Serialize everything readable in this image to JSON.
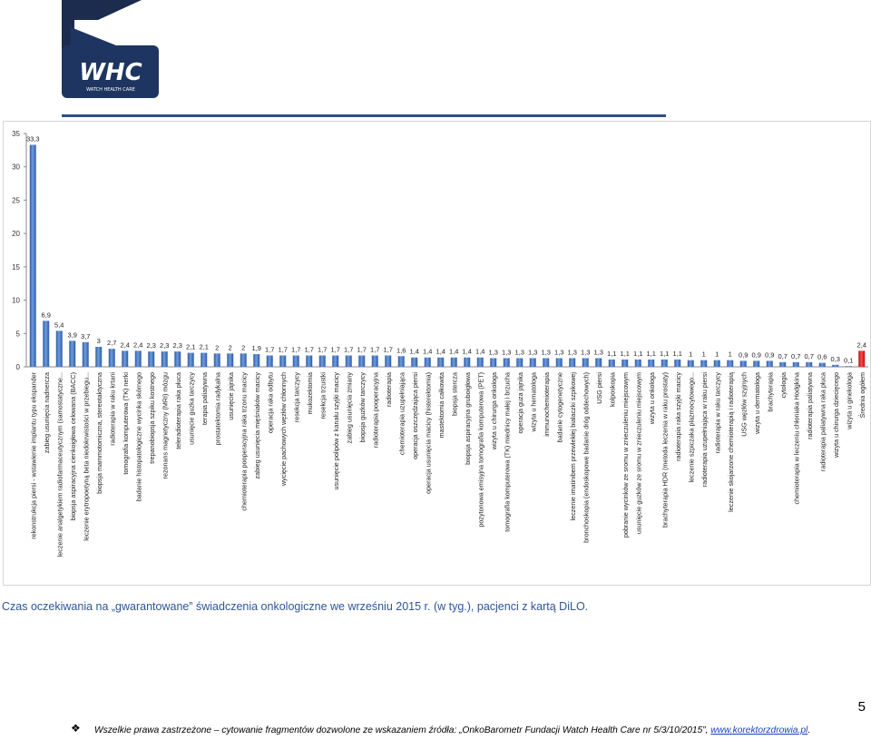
{
  "logo": {
    "brand_text": "WHC",
    "sub_text": "WATCH HEALTH CARE"
  },
  "caption": "Czas oczekiwania na „gwarantowane” świadczenia onkologiczne we wrześniu 2015 r. (w tyg.), pacjenci z kartą DiLO.",
  "page_number": "5",
  "footer": {
    "bullet": "❖",
    "text": "Wszelkie prawa zastrzeżone – cytowanie fragmentów dozwolone ze wskazaniem źródła: „OnkoBarometr Fundacji Watch Health Care nr 5/3/10/2015”, ",
    "link": "www.korektorzdrowia.pl",
    "end": "."
  },
  "colors": {
    "bar": "#3f74c0",
    "highlight": "#e02020",
    "header_rule": "#2e4f86",
    "caption": "#2e5597"
  },
  "chart_data": {
    "type": "bar",
    "ylim": [
      0,
      35
    ],
    "yticks": [
      0,
      5,
      10,
      15,
      20,
      25,
      30,
      35
    ],
    "grid": false,
    "highlight_last": true,
    "categories": [
      "rekonstrukcja piersi - wstawienie implantu typu ekspander",
      "zabieg usunięcia nadnercza",
      "leczenie analgetykiem radiofarmaceutycznym (samostatyczne...",
      "biopsja aspiracyjna cienkoigłowa celowana (BACC)",
      "leczenie erytropoetyną beta niedokrwistości w przebiegu...",
      "biopsja mammotomiczna, stereotaktyczna",
      "radioterapia w raku krtani",
      "tomografia komputerowa (TK) nerki",
      "badanie histopatologiczne wycinka skórnego",
      "trepanobiopsja szpiku kostnego",
      "rezonans magnetyczny (MRI) mózgu",
      "teleradioterapia raka płuca",
      "usunięcie guzka tarczycy",
      "terapia paliatywna",
      "prostatektomia radykalna",
      "usunięcie jajnika",
      "chemioterapia pooperacyjna raka trzonu macicy",
      "zabieg usunięcia mięśniaków macicy",
      "operacja raka odbytu",
      "wycięcie pachowych węzłów chłonnych",
      "resekcja tarczycy",
      "mukozektomia",
      "resekcja trzustki",
      "usunięcie polipów z kanału szyjki macicy",
      "zabieg usunięcia zmiany",
      "biopsja guzków tarczycy",
      "radioterapia pooperacyjna",
      "radioterapia",
      "chemioterapia uzupełniająca",
      "operacja oszczędzająca piersi",
      "operacja usunięcia macicy (histerektomia)",
      "mastektomia całkowita",
      "biopsja stercza",
      "biopsja aspiracyjna gruboigłowa",
      "pozytonowa emisyjna tomografia komputerowa (PET)",
      "wizyta u chirurga onkologa",
      "tomografia komputerowa (TK) miednicy małej i brzucha",
      "operacja guza jajnika",
      "wizyta u hematologa",
      "immunochemioterapia",
      "badanie cytogenetyczne",
      "leczenie imatinibem przewlekłej białaczki szpikowej",
      "bronchoskopia (endoskopowe badanie dróg oddechowych)",
      "USG piersi",
      "kolposkopia",
      "pobranie wycinków ze sromu w znieczuleniu miejscowym",
      "usunięcie guzków ze sromu w znieczuleniu miejscowym",
      "wizyta u onkologa",
      "brachyterapia HDR (metoda leczenia w raku prostaty)",
      "radioterapia raka szyjki macicy",
      "leczenie szpiczaka plazmocytowego...",
      "radioterapia uzupełniająca w raku piersi",
      "radioterapia w raku tarczycy",
      "leczenie skojarzone chemioterapią i radioterapią",
      "USG węzłów szyjnych",
      "wizyta u dermatologa",
      "brachyterapia",
      "cytologia",
      "chemioterapia w leczeniu chłoniaka Hodgkina",
      "radioterapia paliatywna",
      "radioterapia paliatywna raka płuca",
      "wizyta u chirurga dziecięcego",
      "wizyta u ginekologa",
      "Średnia ogółem"
    ],
    "values": [
      33.3,
      6.9,
      5.4,
      3.9,
      3.7,
      3,
      2.7,
      2.4,
      2.4,
      2.3,
      2.3,
      2.3,
      2.1,
      2.1,
      2,
      2,
      2,
      1.9,
      1.7,
      1.7,
      1.7,
      1.7,
      1.7,
      1.7,
      1.7,
      1.7,
      1.7,
      1.7,
      1.6,
      1.4,
      1.4,
      1.4,
      1.4,
      1.4,
      1.4,
      1.3,
      1.3,
      1.3,
      1.3,
      1.3,
      1.3,
      1.3,
      1.3,
      1.3,
      1.1,
      1.1,
      1.1,
      1.1,
      1.1,
      1.1,
      1,
      1,
      1,
      1,
      0.9,
      0.9,
      0.9,
      0.7,
      0.7,
      0.7,
      0.6,
      0.3,
      0.1,
      2.4
    ],
    "value_labels": [
      "33,3",
      "6,9",
      "5,4",
      "3,9",
      "3,7",
      "3",
      "2,7",
      "2,4",
      "2,4",
      "2,3",
      "2,3",
      "2,3",
      "2,1",
      "2,1",
      "2",
      "2",
      "2",
      "1,9",
      "1,7",
      "1,7",
      "1,7",
      "1,7",
      "1,7",
      "1,7",
      "1,7",
      "1,7",
      "1,7",
      "1,7",
      "1,6",
      "1,4",
      "1,4",
      "1,4",
      "1,4",
      "1,4",
      "1,4",
      "1,3",
      "1,3",
      "1,3",
      "1,3",
      "1,3",
      "1,3",
      "1,3",
      "1,3",
      "1,3",
      "1,1",
      "1,1",
      "1,1",
      "1,1",
      "1,1",
      "1,1",
      "1",
      "1",
      "1",
      "1",
      "0,9",
      "0,9",
      "0,9",
      "0,7",
      "0,7",
      "0,7",
      "0,6",
      "0,3",
      "0,1",
      "2,4"
    ]
  }
}
